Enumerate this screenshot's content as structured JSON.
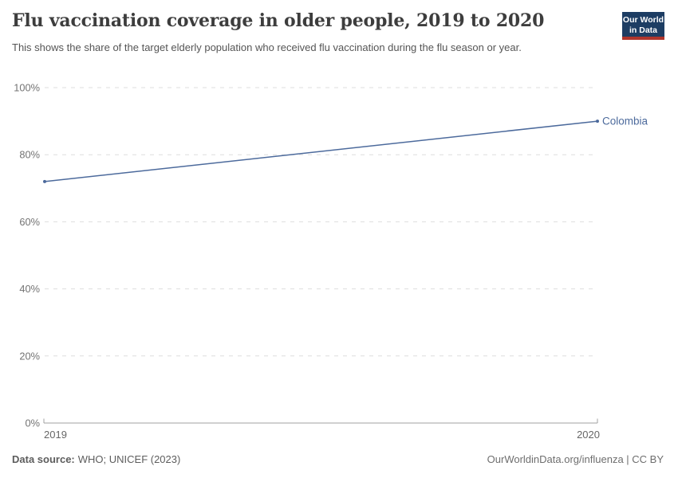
{
  "header": {
    "title": "Flu vaccination coverage in older people, 2019 to 2020",
    "subtitle": "This shows the share of the target elderly population who received flu vaccination during the flu season or year.",
    "logo_line1": "Our World",
    "logo_line2": "in Data"
  },
  "chart_data": {
    "type": "line",
    "title": "Flu vaccination coverage in older people, 2019 to 2020",
    "x": [
      "2019",
      "2020"
    ],
    "series": [
      {
        "name": "Colombia",
        "values": [
          72,
          90
        ],
        "color": "#4C6A9C"
      }
    ],
    "xlabel": "",
    "ylabel": "",
    "ylim": [
      0,
      100
    ],
    "yticks": [
      0,
      20,
      40,
      60,
      80,
      100
    ],
    "ytick_suffix": "%",
    "grid": "horizontal-dashed",
    "legend": "line-end-label"
  },
  "footer": {
    "source_label": "Data source:",
    "source_text": "WHO; UNICEF (2023)",
    "credit": "OurWorldinData.org/influenza | CC BY"
  },
  "colors": {
    "line": "#4C6A9C",
    "logo_bg": "#1d3d63",
    "logo_bar": "#b0352c",
    "grid": "#dedede",
    "axis": "#a1a1a1",
    "y_tick_text": "#737373",
    "x_tick_text": "#666666",
    "title_text": "#3d3d3d",
    "subtitle_text": "#555555"
  }
}
